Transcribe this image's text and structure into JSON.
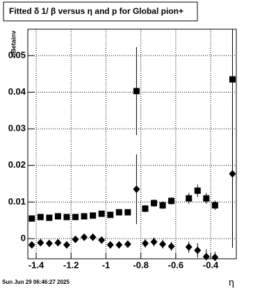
{
  "chart_data": {
    "type": "scatter",
    "title": "Fitted δ 1/ β versus η  and p for Global pion+",
    "y_label": "dBetainv",
    "x_label": "η",
    "timestamp": "Sun Jun 29 06:46:27 2025",
    "xlim": [
      -1.448,
      -0.253
    ],
    "ylim": [
      -0.0055,
      0.0572
    ],
    "xticks": [
      -1.4,
      -1.2,
      -1,
      -0.8,
      -0.6,
      -0.4
    ],
    "yticks": [
      0,
      0.01,
      0.02,
      0.03,
      0.04,
      0.05
    ],
    "grid": true,
    "series": [
      {
        "marker": "square",
        "color": "#000000",
        "x": [
          -1.425,
          -1.375,
          -1.325,
          -1.275,
          -1.225,
          -1.175,
          -1.125,
          -1.075,
          -1.025,
          -0.975,
          -0.925,
          -0.875,
          -0.825,
          -0.775,
          -0.725,
          -0.675,
          -0.625,
          -0.525,
          -0.475,
          -0.425,
          -0.375,
          -0.275
        ],
        "values": [
          0.0055,
          0.0059,
          0.0057,
          0.0061,
          0.0059,
          0.0059,
          0.0061,
          0.0063,
          0.0068,
          0.0065,
          0.0072,
          0.0072,
          0.0403,
          0.0082,
          0.0097,
          0.0091,
          0.0103,
          0.011,
          0.0131,
          0.011,
          0.0091,
          0.0435
        ],
        "errors": [
          0.0006,
          0.0006,
          0.0006,
          0.0006,
          0.0006,
          0.0006,
          0.0006,
          0.0006,
          0.0006,
          0.0006,
          0.0006,
          0.0006,
          0.012,
          0.001,
          0.001,
          0.001,
          0.001,
          0.0015,
          0.0017,
          0.0015,
          0.0013,
          0.046
        ]
      },
      {
        "marker": "diamond",
        "color": "#000000",
        "x": [
          -1.425,
          -1.375,
          -1.325,
          -1.275,
          -1.225,
          -1.175,
          -1.125,
          -1.075,
          -1.025,
          -0.975,
          -0.925,
          -0.875,
          -0.825,
          -0.775,
          -0.725,
          -0.675,
          -0.625,
          -0.525,
          -0.475,
          -0.425,
          -0.375,
          -0.275
        ],
        "values": [
          -0.0017,
          -0.0011,
          -0.0013,
          -0.0011,
          -0.0017,
          -0.0002,
          0.0004,
          0.0004,
          -0.0004,
          -0.0017,
          -0.0017,
          -0.0015,
          0.0135,
          -0.0013,
          -0.0009,
          -0.0015,
          -0.0021,
          -0.0023,
          -0.0032,
          -0.0049,
          -0.0051,
          0.0177
        ],
        "errors": [
          0.0006,
          0.0006,
          0.0006,
          0.0006,
          0.0006,
          0.0006,
          0.0006,
          0.0006,
          0.0006,
          0.0006,
          0.0006,
          0.0006,
          0.0095,
          0.0012,
          0.0012,
          0.0012,
          0.0012,
          0.0015,
          0.002,
          0.002,
          0.0015,
          0.02
        ]
      }
    ]
  }
}
